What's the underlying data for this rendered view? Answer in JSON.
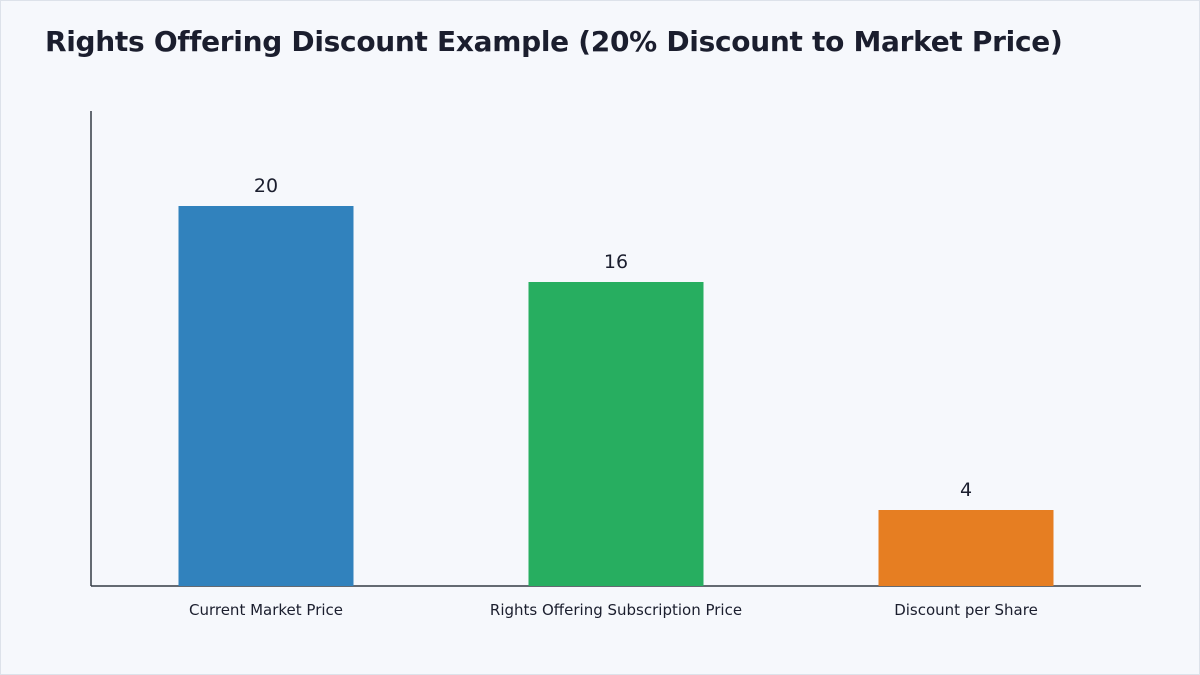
{
  "chart_data": {
    "type": "bar",
    "title": "Rights Offering Discount Example (20% Discount to Market Price)",
    "categories": [
      "Current Market Price",
      "Rights Offering Subscription Price",
      "Discount per Share"
    ],
    "values": [
      20,
      16,
      4
    ],
    "value_labels": [
      "20",
      "16",
      "4"
    ],
    "colors": [
      "#3182bd",
      "#27ae60",
      "#e67e22"
    ],
    "xlabel": "",
    "ylabel": "",
    "ylim": [
      0,
      25
    ],
    "grid": false,
    "legend": "none"
  }
}
